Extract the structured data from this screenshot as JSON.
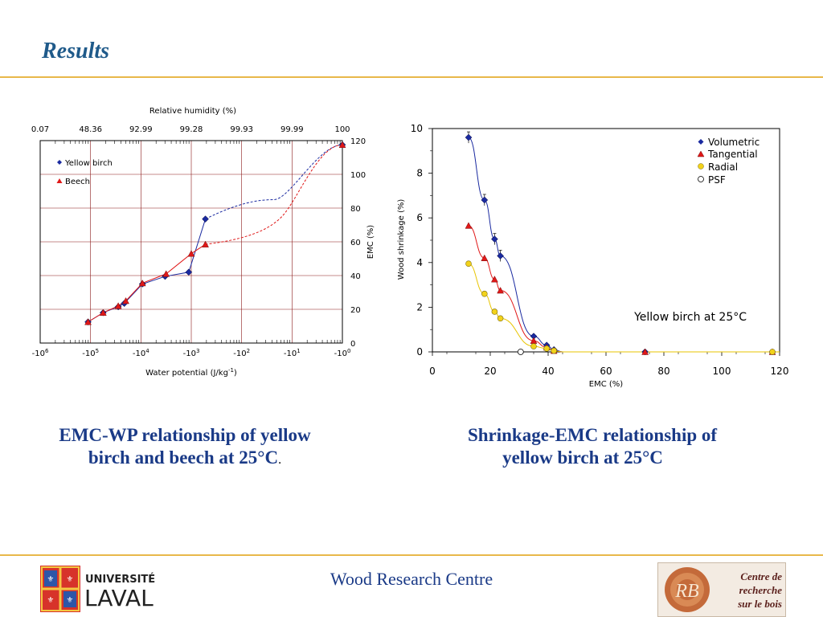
{
  "slide": {
    "title": "Results",
    "footer_center": "Wood Research Centre",
    "captions": {
      "left_line1": "EMC-WP relationship of yellow",
      "left_line2": "birch and beech at 25°C",
      "left_suffix": ".",
      "right_line1": "Shrinkage-EMC relationship of",
      "right_line2": "yellow birch at 25°C"
    },
    "logo_left": {
      "line1": "UNIVERSITÉ",
      "line2": "LAVAL"
    },
    "logo_right": {
      "line1": "Centre de",
      "line2": "recherche",
      "line3": "sur le bois",
      "mono": "RB"
    },
    "colors": {
      "title": "#1f5a8a",
      "caption": "#1a3a87",
      "rule": "#e8b84a"
    }
  },
  "chart_data": [
    {
      "type": "scatter",
      "xlabel": "Water potential (J/kg",
      "xlabel_sup": "-1",
      "xlabel_end": ")",
      "ylabel": "EMC (%)",
      "top_axis_label": "Relative humidity (%)",
      "top_ticks": [
        "0.07",
        "48.36",
        "92.99",
        "99.28",
        "99.93",
        "99.99",
        "100"
      ],
      "x_ticks": [
        {
          "base": "-10",
          "exp": "6"
        },
        {
          "base": "-10",
          "exp": "5"
        },
        {
          "base": "-10",
          "exp": "4"
        },
        {
          "base": "-10",
          "exp": "3"
        },
        {
          "base": "-10",
          "exp": "2"
        },
        {
          "base": "-10",
          "exp": "1"
        },
        {
          "base": "-10",
          "exp": "0"
        }
      ],
      "xscale": "log of -water potential, decreasing to the right",
      "xlim_log10": [
        6,
        0
      ],
      "ylim": [
        0,
        120
      ],
      "y_ticks": [
        0,
        20,
        40,
        60,
        80,
        100,
        120
      ],
      "grid": true,
      "legend_position": "top-left",
      "series": [
        {
          "name": "Yellow birch",
          "color": "#1a2aa0",
          "marker": "diamond",
          "points": [
            [
              -5.05,
              12.5
            ],
            [
              -4.75,
              18
            ],
            [
              -4.45,
              21.5
            ],
            [
              -4.33,
              23.5
            ],
            [
              -3.97,
              35
            ],
            [
              -3.52,
              39.5
            ],
            [
              -3.05,
              42
            ],
            [
              -2.72,
              73.5
            ],
            [
              0,
              117.5
            ]
          ],
          "dashed_from_index": 7
        },
        {
          "name": "Beech",
          "color": "#e01818",
          "marker": "triangle",
          "points": [
            [
              -5.05,
              12.5
            ],
            [
              -4.75,
              18
            ],
            [
              -4.45,
              22
            ],
            [
              -4.3,
              25
            ],
            [
              -3.97,
              35.5
            ],
            [
              -3.5,
              41
            ],
            [
              -3.0,
              53
            ],
            [
              -2.72,
              58.5
            ],
            [
              0,
              117.5
            ]
          ],
          "dashed_from_index": 7
        }
      ]
    },
    {
      "type": "scatter",
      "xlabel": "EMC (%)",
      "ylabel": "Wood shrinkage (%)",
      "xlim": [
        0,
        120
      ],
      "ylim": [
        0,
        10
      ],
      "x_ticks": [
        0,
        20,
        40,
        60,
        80,
        100,
        120
      ],
      "y_ticks": [
        0,
        2,
        4,
        6,
        8,
        10
      ],
      "annotation": "Yellow birch at 25°C",
      "legend_position": "top-right",
      "series": [
        {
          "name": "Volumetric",
          "color": "#1a2aa0",
          "marker": "diamond",
          "points": [
            [
              12.5,
              9.6
            ],
            [
              18,
              6.8
            ],
            [
              21.5,
              5.05
            ],
            [
              23.5,
              4.3
            ],
            [
              35,
              0.7
            ],
            [
              39.5,
              0.3
            ],
            [
              42,
              0.1
            ],
            [
              73.5,
              0
            ],
            [
              117.5,
              0
            ]
          ]
        },
        {
          "name": "Tangential",
          "color": "#e01818",
          "marker": "triangle",
          "points": [
            [
              12.5,
              5.65
            ],
            [
              18,
              4.2
            ],
            [
              21.5,
              3.25
            ],
            [
              23.5,
              2.75
            ],
            [
              35,
              0.5
            ],
            [
              39.5,
              0.2
            ],
            [
              42,
              0.05
            ],
            [
              73.5,
              0
            ],
            [
              117.5,
              0
            ]
          ]
        },
        {
          "name": "Radial",
          "color": "#f2d21a",
          "marker": "circle",
          "points": [
            [
              12.5,
              3.95
            ],
            [
              18,
              2.6
            ],
            [
              21.5,
              1.8
            ],
            [
              23.5,
              1.5
            ],
            [
              35,
              0.25
            ],
            [
              39.5,
              0.15
            ],
            [
              42,
              0.05
            ],
            [
              117.5,
              0
            ]
          ]
        },
        {
          "name": "PSF",
          "color": "#ffffff",
          "marker": "open-circle",
          "points": [
            [
              30.5,
              0
            ]
          ]
        }
      ]
    }
  ]
}
